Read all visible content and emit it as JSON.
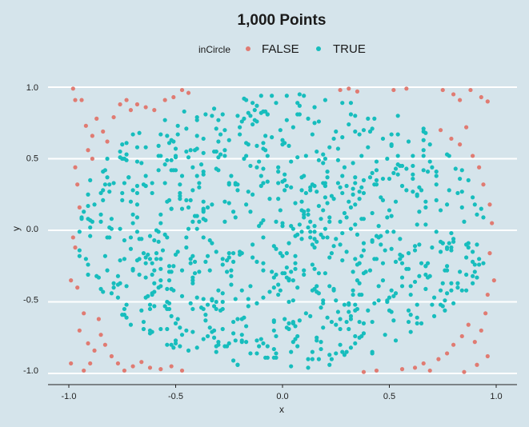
{
  "chart_data": {
    "type": "scatter",
    "title": "1,000 Points",
    "xlabel": "x",
    "ylabel": "y",
    "xlim": [
      -1.0,
      1.0
    ],
    "ylim": [
      -1.0,
      1.0
    ],
    "x_ticks": [
      "-1.0",
      "-0.5",
      "0.0",
      "0.5",
      "1.0"
    ],
    "y_ticks": [
      "1.0",
      "0.5",
      "0.0",
      "-0.5",
      "-1.0"
    ],
    "grid": "horizontal",
    "legend": {
      "title": "inCircle",
      "position": "top",
      "entries": [
        {
          "label": "FALSE",
          "color": "#e07b72"
        },
        {
          "label": "TRUE",
          "color": "#17bdbd"
        }
      ]
    },
    "n_points": 1000,
    "series": [
      {
        "name": "FALSE",
        "color": "#e07b72",
        "points": [
          [
            -0.98,
            0.99
          ],
          [
            -0.97,
            0.91
          ],
          [
            -0.94,
            0.91
          ],
          [
            -0.92,
            0.73
          ],
          [
            -0.89,
            0.66
          ],
          [
            -0.87,
            0.78
          ],
          [
            -0.84,
            0.69
          ],
          [
            -0.82,
            0.62
          ],
          [
            -0.79,
            0.79
          ],
          [
            -0.76,
            0.88
          ],
          [
            -0.73,
            0.91
          ],
          [
            -0.71,
            0.84
          ],
          [
            -0.68,
            0.88
          ],
          [
            -0.64,
            0.86
          ],
          [
            -0.6,
            0.84
          ],
          [
            -0.55,
            0.91
          ],
          [
            -0.51,
            0.93
          ],
          [
            -0.47,
            0.98
          ],
          [
            -0.44,
            0.96
          ],
          [
            -0.97,
            0.44
          ],
          [
            -0.96,
            0.32
          ],
          [
            -0.95,
            0.16
          ],
          [
            -0.98,
            -0.05
          ],
          [
            -0.97,
            -0.12
          ],
          [
            -0.99,
            -0.35
          ],
          [
            -0.96,
            -0.4
          ],
          [
            -0.93,
            -0.58
          ],
          [
            -0.95,
            -0.7
          ],
          [
            -0.91,
            -0.79
          ],
          [
            -0.88,
            -0.84
          ],
          [
            -0.85,
            -0.73
          ],
          [
            -0.83,
            -0.8
          ],
          [
            -0.8,
            -0.88
          ],
          [
            -0.77,
            -0.93
          ],
          [
            -0.74,
            -0.98
          ],
          [
            -0.7,
            -0.95
          ],
          [
            -0.66,
            -0.92
          ],
          [
            -0.62,
            -0.96
          ],
          [
            -0.57,
            -0.97
          ],
          [
            -0.52,
            -0.95
          ],
          [
            -0.47,
            -0.98
          ],
          [
            -0.99,
            -0.93
          ],
          [
            -0.93,
            -0.98
          ],
          [
            -0.9,
            -0.93
          ],
          [
            -0.86,
            -0.62
          ],
          [
            -0.89,
            0.5
          ],
          [
            -0.91,
            0.56
          ],
          [
            0.27,
            0.98
          ],
          [
            0.31,
            0.99
          ],
          [
            0.35,
            0.97
          ],
          [
            0.52,
            0.98
          ],
          [
            0.58,
            0.99
          ],
          [
            0.75,
            0.98
          ],
          [
            0.8,
            0.95
          ],
          [
            0.83,
            0.91
          ],
          [
            0.88,
            0.98
          ],
          [
            0.93,
            0.93
          ],
          [
            0.96,
            0.9
          ],
          [
            0.74,
            0.7
          ],
          [
            0.79,
            0.64
          ],
          [
            0.83,
            0.6
          ],
          [
            0.86,
            0.72
          ],
          [
            0.89,
            0.52
          ],
          [
            0.92,
            0.44
          ],
          [
            0.94,
            0.32
          ],
          [
            0.97,
            0.18
          ],
          [
            0.98,
            0.05
          ],
          [
            0.97,
            -0.16
          ],
          [
            0.99,
            -0.35
          ],
          [
            0.96,
            -0.45
          ],
          [
            0.95,
            -0.58
          ],
          [
            0.93,
            -0.7
          ],
          [
            0.9,
            -0.78
          ],
          [
            0.87,
            -0.66
          ],
          [
            0.84,
            -0.74
          ],
          [
            0.8,
            -0.8
          ],
          [
            0.77,
            -0.86
          ],
          [
            0.73,
            -0.9
          ],
          [
            0.69,
            -0.98
          ],
          [
            0.62,
            -0.96
          ],
          [
            0.56,
            -0.97
          ],
          [
            0.44,
            -0.98
          ],
          [
            0.38,
            -0.99
          ],
          [
            0.85,
            -0.99
          ],
          [
            0.91,
            -0.94
          ],
          [
            0.96,
            -0.88
          ],
          [
            0.66,
            -0.93
          ]
        ]
      },
      {
        "name": "TRUE",
        "color": "#17bdbd",
        "points": []
      }
    ]
  }
}
